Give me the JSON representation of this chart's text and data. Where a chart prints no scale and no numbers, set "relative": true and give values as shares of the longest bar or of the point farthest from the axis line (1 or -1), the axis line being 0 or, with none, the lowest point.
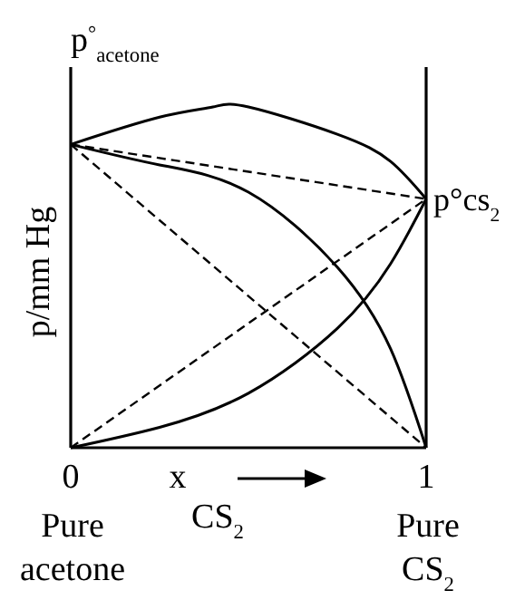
{
  "chart_data": {
    "type": "line",
    "relative": true,
    "xlabel": "x CS$_{2}$",
    "ylabel": "p/mm Hg",
    "xlim": [
      0,
      1
    ],
    "xticks": [
      0,
      1
    ],
    "line_style": "solid",
    "marker": "none",
    "annotations": [
      "p$^{°}$$_{acetone}$",
      {
        "text": "p°cs$_{2}$",
        "x": 1,
        "y": 0.73
      },
      "Pure acetone",
      "Pure CS$_{2}$"
    ],
    "series": [
      {
        "color": "#000000",
        "x": [
          0,
          0.25,
          0.5,
          0.75,
          0.9,
          1
        ],
        "values": [
          0.89,
          0.83,
          0.75,
          0.53,
          0.29,
          0
        ]
      },
      {
        "color": "#000000",
        "x": [
          0,
          0.25,
          0.5,
          0.75,
          0.9,
          1
        ],
        "values": [
          0,
          0.06,
          0.16,
          0.35,
          0.54,
          0.73
        ]
      },
      {
        "color": "#000000",
        "x": [
          0,
          0.25,
          0.4,
          0.5,
          0.75,
          0.9,
          1
        ],
        "values": [
          0.89,
          0.97,
          1.0,
          1.0,
          0.92,
          0.84,
          0.73
        ]
      },
      {
        "color": "#000000",
        "line_style": "dashed",
        "x": [
          0,
          1
        ],
        "values": [
          0.89,
          0
        ]
      },
      {
        "color": "#000000",
        "line_style": "dashed",
        "x": [
          0,
          1
        ],
        "values": [
          0,
          0.73
        ]
      },
      {
        "color": "#000000",
        "line_style": "dashed",
        "x": [
          0,
          1
        ],
        "values": [
          0.89,
          0.73
        ]
      }
    ]
  }
}
